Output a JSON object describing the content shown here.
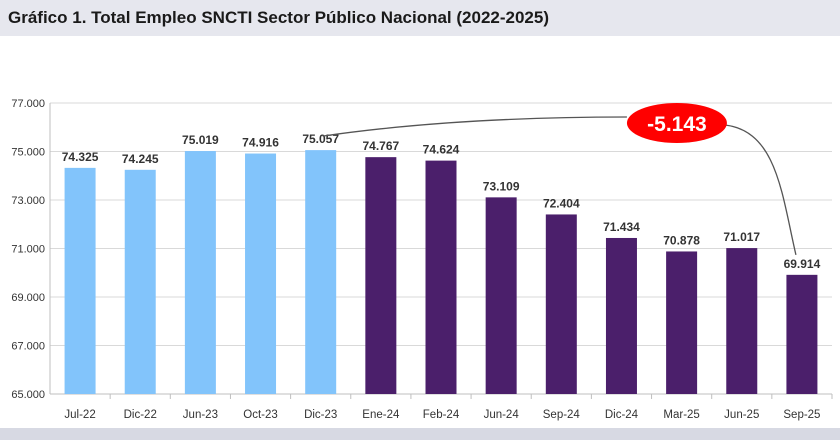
{
  "chart_data": {
    "type": "bar",
    "title": "Gráfico 1. Total Empleo SNCTI Sector Público Nacional (2022-2025)",
    "categories": [
      "Jul-22",
      "Dic-22",
      "Jun-23",
      "Oct-23",
      "Dic-23",
      "Ene-24",
      "Feb-24",
      "Jun-24",
      "Sep-24",
      "Dic-24",
      "Mar-25",
      "Jun-25",
      "Sep-25"
    ],
    "values": [
      74325,
      74245,
      75019,
      74916,
      75057,
      74767,
      74624,
      73109,
      72404,
      71434,
      70878,
      71017,
      69914
    ],
    "data_labels": [
      "74.325",
      "74.245",
      "75.019",
      "74.916",
      "75.057",
      "74.767",
      "74.624",
      "73.109",
      "72.404",
      "71.434",
      "70.878",
      "71.017",
      "69.914"
    ],
    "colors": [
      "#82c4fb",
      "#82c4fb",
      "#82c4fb",
      "#82c4fb",
      "#82c4fb",
      "#4b1f6b",
      "#4b1f6b",
      "#4b1f6b",
      "#4b1f6b",
      "#4b1f6b",
      "#4b1f6b",
      "#4b1f6b",
      "#4b1f6b"
    ],
    "ylim": [
      65000,
      77000
    ],
    "yticks": [
      "65.000",
      "67.000",
      "69.000",
      "71.000",
      "73.000",
      "75.000",
      "77.000"
    ],
    "ytick_values": [
      65000,
      67000,
      69000,
      71000,
      73000,
      75000,
      77000
    ],
    "grid": true,
    "annotation": {
      "text": "-5.143",
      "color": "#ff0000",
      "from": "Dic-23",
      "to": "Sep-25"
    }
  }
}
